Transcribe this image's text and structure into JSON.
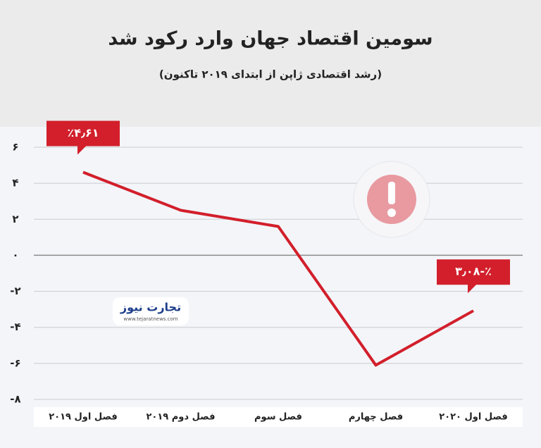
{
  "chart_data": {
    "type": "line",
    "title": "سومین اقتصاد جهان وارد رکود شد",
    "subtitle": "(رشد اقتصادی ژاپن از ابتدای ۲۰۱۹ تاکنون)",
    "categories": [
      "فصل اول ۲۰۱۹",
      "فصل دوم ۲۰۱۹",
      "فصل سوم",
      "فصل چهارم",
      "فصل اول ۲۰۲۰"
    ],
    "series": [
      {
        "color": "#d21f2b",
        "values": [
          4.61,
          2.5,
          1.6,
          -6.1,
          -3.08
        ],
        "value_labels": [
          "٪۴٫۶۱",
          null,
          null,
          null,
          "٪-۳٫۰۸"
        ]
      }
    ],
    "ylim": [
      -8,
      6
    ],
    "yticks": [
      {
        "value": 6,
        "label": "۶"
      },
      {
        "value": 4,
        "label": "۴"
      },
      {
        "value": 2,
        "label": "۲"
      },
      {
        "value": 0,
        "label": "۰"
      },
      {
        "value": -2,
        "label": "-۲"
      },
      {
        "value": -4,
        "label": "-۴"
      },
      {
        "value": -6,
        "label": "-۶"
      },
      {
        "value": -8,
        "label": "-۸"
      }
    ],
    "grid": true,
    "watermark": {
      "name": "تجارت نیوز",
      "url": "www.tejaratnews.com"
    }
  }
}
